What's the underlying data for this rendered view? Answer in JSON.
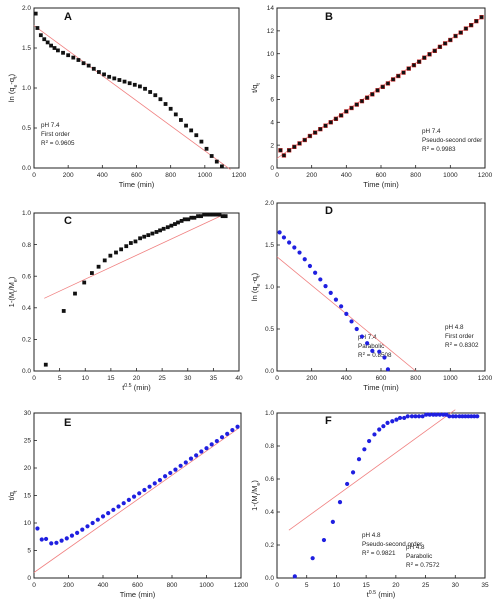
{
  "figure": {
    "panels": [
      {
        "letter": "A",
        "ylabel": "ln (q<sub>e</sub>-q<sub>t</sub>)",
        "xlabel": "Time (min)",
        "annotation": [
          "pH 7.4",
          "First order",
          "R<sup>2</sup> = 0.9605"
        ],
        "xlim": [
          0,
          1200
        ],
        "ylim": [
          0,
          2
        ],
        "xticks": [
          0,
          200,
          400,
          600,
          800,
          1000,
          1200
        ],
        "yticks": [
          0.0,
          0.5,
          1.0,
          1.5,
          2.0
        ],
        "ytick_labels": [
          "0.0",
          "0.5",
          "1.0",
          "1.5",
          "2.0"
        ],
        "marker": "square",
        "marker_color": "#111111",
        "fit_line": {
          "x": [
            0,
            1150
          ],
          "y": [
            1.78,
            -0.02
          ]
        },
        "points": [
          [
            10,
            1.93
          ],
          [
            20,
            1.75
          ],
          [
            40,
            1.66
          ],
          [
            60,
            1.61
          ],
          [
            80,
            1.57
          ],
          [
            100,
            1.53
          ],
          [
            120,
            1.5
          ],
          [
            140,
            1.47
          ],
          [
            170,
            1.44
          ],
          [
            200,
            1.41
          ],
          [
            230,
            1.38
          ],
          [
            260,
            1.35
          ],
          [
            290,
            1.31
          ],
          [
            320,
            1.28
          ],
          [
            350,
            1.24
          ],
          [
            380,
            1.2
          ],
          [
            410,
            1.17
          ],
          [
            440,
            1.14
          ],
          [
            470,
            1.12
          ],
          [
            500,
            1.1
          ],
          [
            530,
            1.08
          ],
          [
            560,
            1.06
          ],
          [
            590,
            1.04
          ],
          [
            620,
            1.02
          ],
          [
            650,
            0.99
          ],
          [
            680,
            0.95
          ],
          [
            710,
            0.91
          ],
          [
            740,
            0.86
          ],
          [
            770,
            0.8
          ],
          [
            800,
            0.74
          ],
          [
            830,
            0.67
          ],
          [
            860,
            0.6
          ],
          [
            890,
            0.53
          ],
          [
            920,
            0.47
          ],
          [
            950,
            0.41
          ],
          [
            980,
            0.33
          ],
          [
            1010,
            0.24
          ],
          [
            1040,
            0.15
          ],
          [
            1070,
            0.08
          ],
          [
            1100,
            0.02
          ]
        ]
      },
      {
        "letter": "B",
        "ylabel": "t/q<sub>t</sub>",
        "xlabel": "Time (min)",
        "annotation": [
          "pH 7.4",
          "Pseudo-second order",
          "R<sup>2</sup> = 0.9983"
        ],
        "xlim": [
          0,
          1200
        ],
        "ylim": [
          0,
          14
        ],
        "xticks": [
          0,
          200,
          400,
          600,
          800,
          1000,
          1200
        ],
        "yticks": [
          0,
          2,
          4,
          6,
          8,
          10,
          12,
          14
        ],
        "ytick_labels": [
          "0",
          "2",
          "4",
          "6",
          "8",
          "10",
          "12",
          "14"
        ],
        "marker": "square",
        "marker_color": "#111111",
        "marker_stroke": "#cc2222",
        "fit_line": {
          "x": [
            0,
            1190
          ],
          "y": [
            0.85,
            13.25
          ]
        },
        "points": [
          [
            20,
            1.55
          ],
          [
            40,
            1.1
          ],
          [
            70,
            1.55
          ],
          [
            100,
            1.85
          ],
          [
            130,
            2.15
          ],
          [
            160,
            2.45
          ],
          [
            190,
            2.8
          ],
          [
            220,
            3.1
          ],
          [
            250,
            3.4
          ],
          [
            280,
            3.7
          ],
          [
            310,
            4.0
          ],
          [
            340,
            4.3
          ],
          [
            370,
            4.6
          ],
          [
            400,
            4.95
          ],
          [
            430,
            5.25
          ],
          [
            460,
            5.55
          ],
          [
            490,
            5.85
          ],
          [
            520,
            6.15
          ],
          [
            550,
            6.45
          ],
          [
            580,
            6.8
          ],
          [
            610,
            7.1
          ],
          [
            640,
            7.4
          ],
          [
            670,
            7.75
          ],
          [
            700,
            8.05
          ],
          [
            730,
            8.35
          ],
          [
            760,
            8.7
          ],
          [
            790,
            9.0
          ],
          [
            820,
            9.3
          ],
          [
            850,
            9.65
          ],
          [
            880,
            9.95
          ],
          [
            910,
            10.25
          ],
          [
            940,
            10.6
          ],
          [
            970,
            10.9
          ],
          [
            1000,
            11.2
          ],
          [
            1030,
            11.55
          ],
          [
            1060,
            11.85
          ],
          [
            1090,
            12.2
          ],
          [
            1120,
            12.5
          ],
          [
            1150,
            12.85
          ],
          [
            1180,
            13.2
          ]
        ]
      },
      {
        "letter": "C",
        "ylabel": "1-(M<sub>t</sub>/M<sub>e</sub>)",
        "xlabel": "t<sup>0.5</sup> (min)",
        "annotation": [
          "pH 7.4",
          "Parabolic",
          "R<sup>2</sup> = 0.8508"
        ],
        "xlim": [
          0,
          40
        ],
        "ylim": [
          0,
          1.0
        ],
        "xticks": [
          0,
          5,
          10,
          15,
          20,
          25,
          30,
          35,
          40
        ],
        "yticks": [
          0.0,
          0.2,
          0.4,
          0.6,
          0.8,
          1.0
        ],
        "ytick_labels": [
          "0.0",
          "0.2",
          "0.4",
          "0.6",
          "0.8",
          "1.0"
        ],
        "marker": "square",
        "marker_color": "#111111",
        "fit_line": {
          "x": [
            2,
            37
          ],
          "y": [
            0.46,
            0.99
          ]
        },
        "points": [
          [
            2.3,
            0.04
          ],
          [
            5.8,
            0.38
          ],
          [
            8.0,
            0.49
          ],
          [
            9.8,
            0.56
          ],
          [
            11.3,
            0.62
          ],
          [
            12.6,
            0.66
          ],
          [
            13.8,
            0.7
          ],
          [
            14.9,
            0.73
          ],
          [
            16.0,
            0.75
          ],
          [
            17.0,
            0.77
          ],
          [
            18.0,
            0.79
          ],
          [
            18.9,
            0.81
          ],
          [
            19.8,
            0.82
          ],
          [
            20.7,
            0.84
          ],
          [
            21.5,
            0.85
          ],
          [
            22.3,
            0.86
          ],
          [
            23.1,
            0.87
          ],
          [
            23.9,
            0.88
          ],
          [
            24.6,
            0.89
          ],
          [
            25.3,
            0.9
          ],
          [
            26.1,
            0.91
          ],
          [
            26.8,
            0.92
          ],
          [
            27.5,
            0.93
          ],
          [
            28.1,
            0.94
          ],
          [
            28.8,
            0.95
          ],
          [
            29.4,
            0.96
          ],
          [
            30.1,
            0.96
          ],
          [
            30.7,
            0.97
          ],
          [
            31.3,
            0.97
          ],
          [
            32.0,
            0.98
          ],
          [
            32.6,
            0.98
          ],
          [
            33.2,
            0.99
          ],
          [
            33.8,
            0.99
          ],
          [
            34.4,
            0.99
          ],
          [
            35.0,
            0.99
          ],
          [
            35.6,
            0.99
          ],
          [
            36.2,
            0.99
          ],
          [
            36.8,
            0.98
          ],
          [
            37.4,
            0.98
          ]
        ]
      },
      {
        "letter": "D",
        "ylabel": "ln (q<sub>e</sub>-q<sub>t</sub>)",
        "xlabel": "Time (min)",
        "annotation": [
          "pH 4.8",
          "First order",
          "R<sup>2</sup> = 0.8302"
        ],
        "xlim": [
          0,
          1200
        ],
        "ylim": [
          0,
          2
        ],
        "xticks": [
          0,
          200,
          400,
          600,
          800,
          1000,
          1200
        ],
        "yticks": [
          0.0,
          0.5,
          1.0,
          1.5,
          2.0
        ],
        "ytick_labels": [
          "0.0",
          "0.5",
          "1.0",
          "1.5",
          "2.0"
        ],
        "marker": "circle",
        "marker_color": "#1f1fe0",
        "fit_line": {
          "x": [
            0,
            800
          ],
          "y": [
            1.36,
            0.0
          ]
        },
        "points": [
          [
            15,
            1.65
          ],
          [
            40,
            1.59
          ],
          [
            70,
            1.53
          ],
          [
            100,
            1.47
          ],
          [
            130,
            1.41
          ],
          [
            160,
            1.33
          ],
          [
            190,
            1.25
          ],
          [
            220,
            1.17
          ],
          [
            250,
            1.09
          ],
          [
            280,
            1.01
          ],
          [
            310,
            0.93
          ],
          [
            340,
            0.85
          ],
          [
            370,
            0.77
          ],
          [
            400,
            0.68
          ],
          [
            430,
            0.59
          ],
          [
            460,
            0.5
          ],
          [
            490,
            0.41
          ],
          [
            520,
            0.33
          ],
          [
            550,
            0.24
          ],
          [
            590,
            0.23
          ],
          [
            620,
            0.16
          ],
          [
            640,
            0.02
          ]
        ]
      },
      {
        "letter": "E",
        "ylabel": "t/q<sub>t</sub>",
        "xlabel": "Time (min)",
        "annotation": [
          "pH 4.8",
          "Pseudo-second order",
          "R<sup>2</sup> = 0.9821"
        ],
        "xlim": [
          0,
          1200
        ],
        "ylim": [
          0,
          30
        ],
        "xticks": [
          0,
          200,
          400,
          600,
          800,
          1000,
          1200
        ],
        "yticks": [
          0,
          5,
          10,
          15,
          20,
          25,
          30
        ],
        "ytick_labels": [
          "0",
          "5",
          "10",
          "15",
          "20",
          "25",
          "30"
        ],
        "marker": "circle",
        "marker_color": "#1f1fe0",
        "fit_line": {
          "x": [
            0,
            1190
          ],
          "y": [
            1.0,
            27.3
          ]
        },
        "points": [
          [
            20,
            9.0
          ],
          [
            45,
            7.0
          ],
          [
            70,
            7.1
          ],
          [
            100,
            6.3
          ],
          [
            130,
            6.4
          ],
          [
            160,
            6.8
          ],
          [
            190,
            7.2
          ],
          [
            220,
            7.7
          ],
          [
            250,
            8.2
          ],
          [
            280,
            8.8
          ],
          [
            310,
            9.4
          ],
          [
            340,
            10.0
          ],
          [
            370,
            10.6
          ],
          [
            400,
            11.2
          ],
          [
            430,
            11.8
          ],
          [
            460,
            12.4
          ],
          [
            490,
            13.0
          ],
          [
            520,
            13.6
          ],
          [
            550,
            14.2
          ],
          [
            580,
            14.8
          ],
          [
            610,
            15.4
          ],
          [
            640,
            16.0
          ],
          [
            670,
            16.6
          ],
          [
            700,
            17.2
          ],
          [
            730,
            17.8
          ],
          [
            760,
            18.5
          ],
          [
            790,
            19.1
          ],
          [
            820,
            19.7
          ],
          [
            850,
            20.4
          ],
          [
            880,
            21.0
          ],
          [
            910,
            21.7
          ],
          [
            940,
            22.3
          ],
          [
            970,
            23.0
          ],
          [
            1000,
            23.6
          ],
          [
            1030,
            24.3
          ],
          [
            1060,
            24.9
          ],
          [
            1090,
            25.6
          ],
          [
            1120,
            26.2
          ],
          [
            1150,
            26.9
          ],
          [
            1180,
            27.5
          ]
        ]
      },
      {
        "letter": "F",
        "ylabel": "1-(M<sub>t</sub>/M<sub>e</sub>)",
        "xlabel": "t<sup>0.5</sup> (min)",
        "annotation": [
          "pH 4.8",
          "Parabolic",
          "R<sup>2</sup> = 0.7572"
        ],
        "xlim": [
          0,
          35
        ],
        "ylim": [
          0,
          1.0
        ],
        "xticks": [
          0,
          5,
          10,
          15,
          20,
          25,
          30,
          35
        ],
        "yticks": [
          0.0,
          0.2,
          0.4,
          0.6,
          0.8,
          1.0
        ],
        "ytick_labels": [
          "0.0",
          "0.2",
          "0.4",
          "0.6",
          "0.8",
          "1.0"
        ],
        "marker": "circle",
        "marker_color": "#1f1fe0",
        "fit_line": {
          "x": [
            2,
            30
          ],
          "y": [
            0.29,
            1.02
          ]
        },
        "points": [
          [
            3.0,
            0.01
          ],
          [
            6.0,
            0.12
          ],
          [
            7.9,
            0.23
          ],
          [
            9.4,
            0.34
          ],
          [
            10.6,
            0.46
          ],
          [
            11.8,
            0.57
          ],
          [
            12.8,
            0.64
          ],
          [
            13.8,
            0.72
          ],
          [
            14.7,
            0.78
          ],
          [
            15.5,
            0.83
          ],
          [
            16.4,
            0.87
          ],
          [
            17.2,
            0.9
          ],
          [
            17.9,
            0.92
          ],
          [
            18.6,
            0.94
          ],
          [
            19.4,
            0.95
          ],
          [
            20.1,
            0.96
          ],
          [
            20.7,
            0.97
          ],
          [
            21.4,
            0.97
          ],
          [
            22.0,
            0.98
          ],
          [
            22.7,
            0.98
          ],
          [
            23.3,
            0.98
          ],
          [
            23.9,
            0.98
          ],
          [
            24.5,
            0.98
          ],
          [
            25.1,
            0.99
          ],
          [
            25.7,
            0.99
          ],
          [
            26.3,
            0.99
          ],
          [
            26.8,
            0.99
          ],
          [
            27.4,
            0.99
          ],
          [
            28.0,
            0.99
          ],
          [
            28.5,
            0.99
          ],
          [
            29.0,
            0.98
          ],
          [
            29.6,
            0.98
          ],
          [
            30.1,
            0.98
          ],
          [
            30.7,
            0.98
          ],
          [
            31.2,
            0.98
          ],
          [
            31.7,
            0.98
          ],
          [
            32.2,
            0.98
          ],
          [
            32.7,
            0.98
          ],
          [
            33.2,
            0.98
          ],
          [
            33.7,
            0.98
          ]
        ]
      }
    ]
  },
  "colors": {
    "fit_line": "#f08080",
    "axis": "#222222"
  },
  "chart_data": [
    {
      "type": "scatter",
      "panel": "A",
      "series": [
        {
          "values": "see figure.panels[0].points"
        }
      ]
    }
  ]
}
